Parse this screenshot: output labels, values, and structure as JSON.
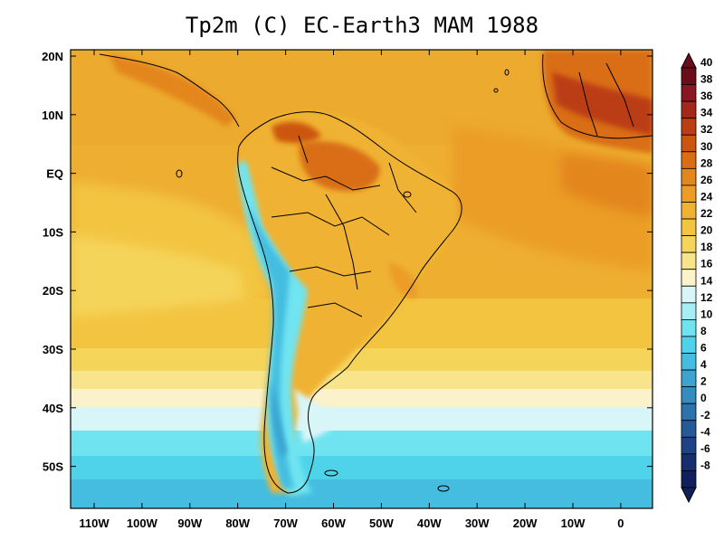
{
  "title": "Tp2m (C)  EC-Earth3 MAM 1988",
  "lat_labels": [
    "20N",
    "10N",
    "EQ",
    "10S",
    "20S",
    "30S",
    "40S",
    "50S"
  ],
  "lon_labels": [
    "110W",
    "100W",
    "90W",
    "80W",
    "70W",
    "60W",
    "50W",
    "40W",
    "30W",
    "20W",
    "10W",
    "0"
  ],
  "colorbar": {
    "labels": [
      "40",
      "38",
      "36",
      "34",
      "32",
      "30",
      "28",
      "26",
      "24",
      "22",
      "20",
      "18",
      "16",
      "14",
      "12",
      "10",
      "8",
      "6",
      "4",
      "2",
      "0",
      "-2",
      "-4",
      "-6",
      "-8"
    ],
    "colors": [
      "#6a0c1a",
      "#8a1622",
      "#a4281a",
      "#bb3d12",
      "#cc560e",
      "#d96e14",
      "#e3861c",
      "#eb9d26",
      "#f0b232",
      "#f3c440",
      "#f5d45a",
      "#f8e48a",
      "#fbf2cc",
      "#d8f5f8",
      "#a6eef6",
      "#6fe4f0",
      "#4fd3ea",
      "#44bde0",
      "#3ba4d0",
      "#348cc0",
      "#2c72ad",
      "#255a99",
      "#1d4286",
      "#162e70",
      "#10205c"
    ]
  },
  "map": {
    "region": "South America and adjacent oceans",
    "lon_range": [
      -114,
      6
    ],
    "lat_range": [
      -57,
      21
    ],
    "variable": "Tp2m (C)"
  }
}
